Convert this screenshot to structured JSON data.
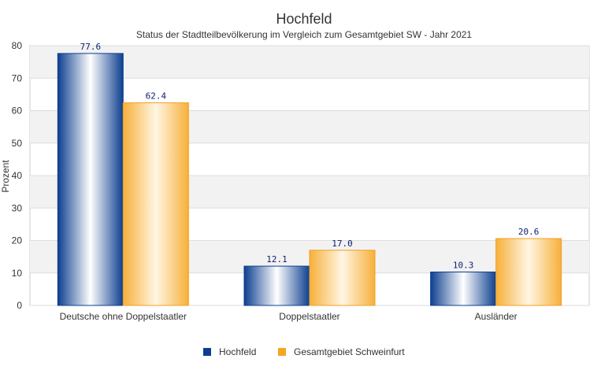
{
  "chart_data": {
    "type": "bar",
    "title": "Hochfeld",
    "subtitle": "Status der Stadtteilbevölkerung im Vergleich zum Gesamtgebiet SW - Jahr 2021",
    "ylabel": "Prozent",
    "xlabel": "",
    "ylim": [
      0,
      80
    ],
    "yticks": [
      0,
      10,
      20,
      30,
      40,
      50,
      60,
      70,
      80
    ],
    "categories": [
      "Deutsche ohne Doppelstaatler",
      "Doppelstaatler",
      "Ausländer"
    ],
    "series": [
      {
        "name": "Hochfeld",
        "values": [
          77.6,
          12.1,
          10.3
        ],
        "labels": [
          "77.6",
          "12.1",
          "10.3"
        ],
        "color": "#1a4fa0"
      },
      {
        "name": "Gesamtgebiet Schweinfurt",
        "values": [
          62.4,
          17.0,
          20.6
        ],
        "labels": [
          "62.4",
          "17.0",
          "20.6"
        ],
        "color": "#f5a623"
      }
    ],
    "grid": true,
    "legend": "bottom"
  }
}
